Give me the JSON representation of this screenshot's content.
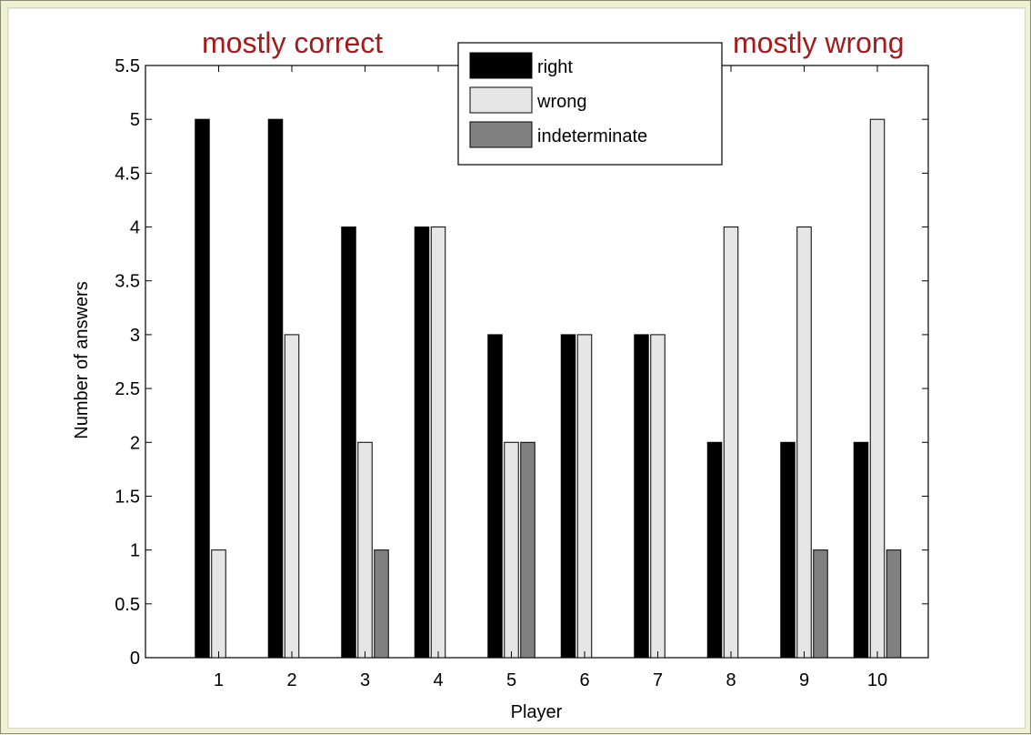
{
  "chart_data": {
    "type": "bar",
    "categories": [
      "1",
      "2",
      "3",
      "4",
      "5",
      "6",
      "7",
      "8",
      "9",
      "10"
    ],
    "series": [
      {
        "name": "right",
        "color": "#000000",
        "values": [
          5,
          5,
          4,
          4,
          3,
          3,
          3,
          2,
          2,
          2
        ]
      },
      {
        "name": "wrong",
        "color": "#e6e6e6",
        "values": [
          1,
          3,
          2,
          4,
          2,
          3,
          3,
          4,
          4,
          5
        ]
      },
      {
        "name": "indeterminate",
        "color": "#808080",
        "values": [
          0,
          0,
          1,
          0,
          2,
          0,
          0,
          0,
          1,
          1
        ]
      }
    ],
    "xlabel": "Player",
    "ylabel": "Number of answers",
    "ylim": [
      0,
      5.5
    ],
    "yticks": [
      "0",
      "0.5",
      "1",
      "1.5",
      "2",
      "2.5",
      "3",
      "3.5",
      "4",
      "4.5",
      "5",
      "5.5"
    ],
    "legend_position": "top-center",
    "grid": false,
    "annotations": [
      {
        "text": "mostly correct",
        "color": "#a31c1c",
        "position": "top-left"
      },
      {
        "text": "mostly wrong",
        "color": "#a31c1c",
        "position": "top-right"
      }
    ]
  }
}
